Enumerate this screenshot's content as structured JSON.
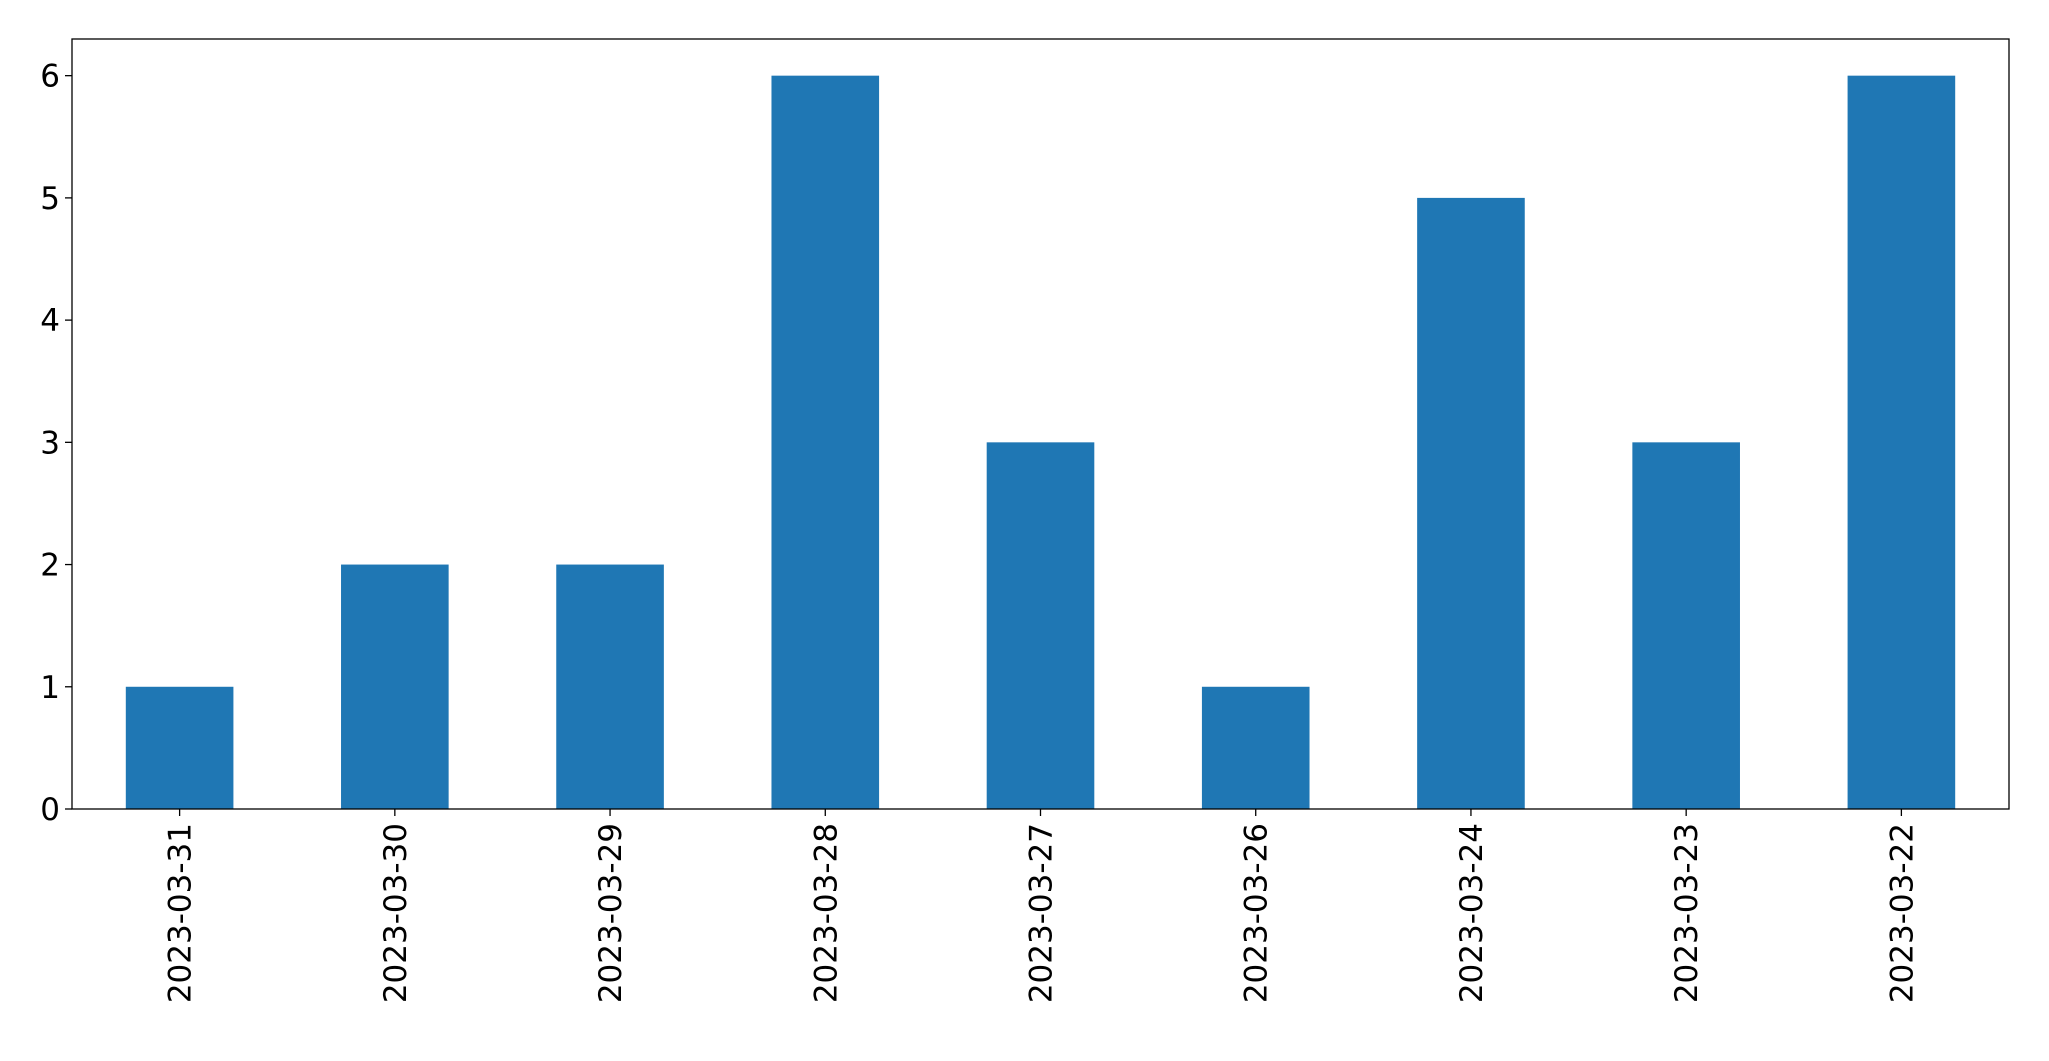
{
  "chart_data": {
    "type": "bar",
    "title": "",
    "xlabel": "",
    "ylabel": "",
    "categories": [
      "2023-03-31",
      "2023-03-30",
      "2023-03-29",
      "2023-03-28",
      "2023-03-27",
      "2023-03-26",
      "2023-03-24",
      "2023-03-23",
      "2023-03-22"
    ],
    "values": [
      1,
      2,
      2,
      6,
      3,
      1,
      5,
      3,
      6
    ],
    "ylim": [
      0,
      6.3
    ],
    "yticks": [
      0,
      1,
      2,
      3,
      4,
      5,
      6
    ],
    "grid": false,
    "bar_color": "#1f77b4",
    "xtick_rotation": 90
  }
}
